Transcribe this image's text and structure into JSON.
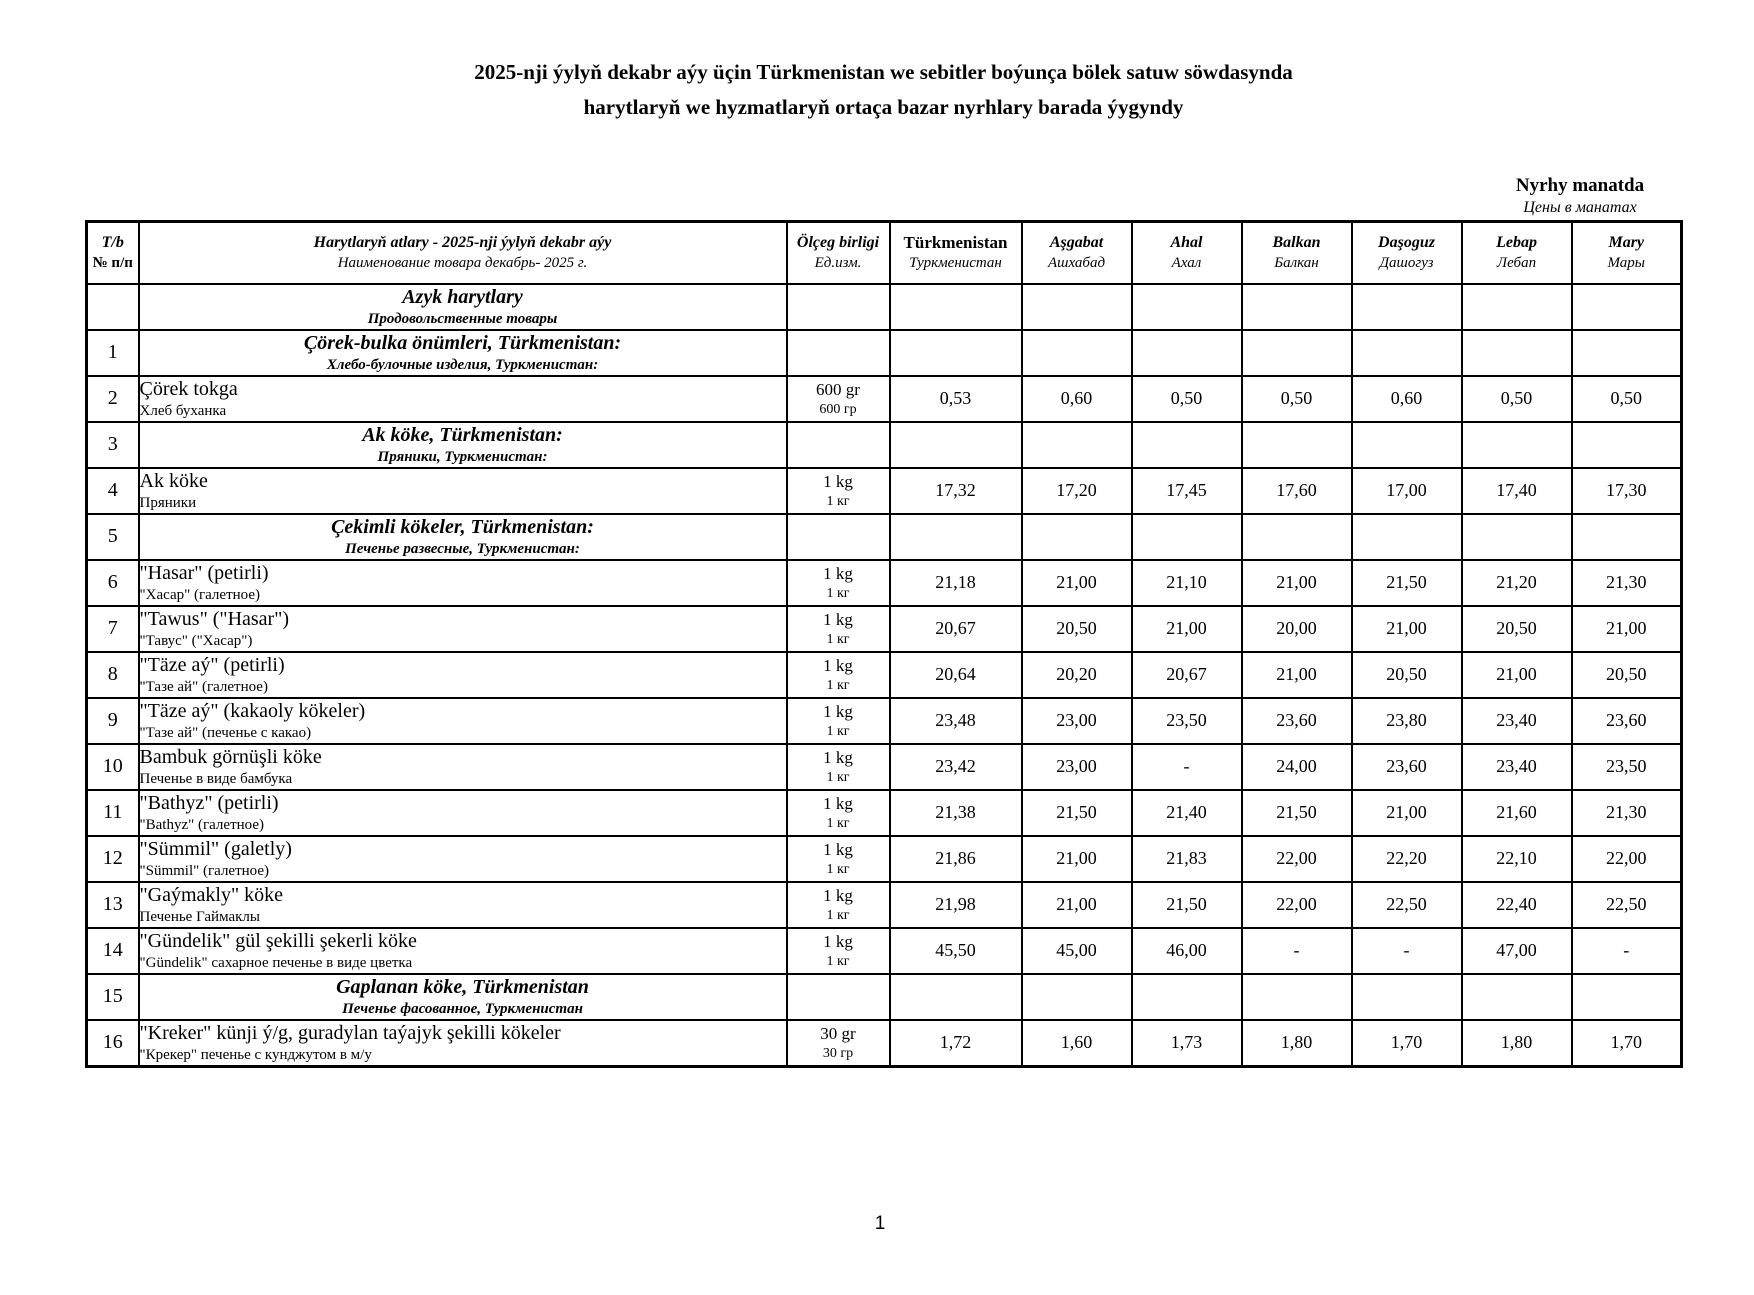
{
  "page": {
    "title_line1": "2025-nji ýylyň dekabr aýy üçin Türkmenistan we sebitler boýunça bölek satuw söwdasynda",
    "title_line2": "harytlaryň we hyzmatlaryň ortaça bazar nyrhlary barada ýygyndy",
    "currency_note_tm": "Nyrhy manatda",
    "currency_note_ru": "Цены в манатах",
    "page_number": "1"
  },
  "table": {
    "header": {
      "num_tm": "T/b",
      "num_ru": "№ п/п",
      "name_tm": "Harytlaryň atlary - 2025-nji ýylyň dekabr aýy",
      "name_ru": "Наименование товара декабрь-  2025 г.",
      "unit_tm": "Ölçeg birligi",
      "unit_ru": "Ед.изм.",
      "regions": [
        {
          "tm": "Türkmenistan",
          "ru": "Туркменистан"
        },
        {
          "tm": "Aşgabat",
          "ru": "Ашхабад"
        },
        {
          "tm": "Ahal",
          "ru": "Ахал"
        },
        {
          "tm": "Balkan",
          "ru": "Балкан"
        },
        {
          "tm": "Daşoguz",
          "ru": "Дашогуз"
        },
        {
          "tm": "Lebap",
          "ru": "Лебап"
        },
        {
          "tm": "Mary",
          "ru": "Мары"
        }
      ]
    },
    "rows": [
      {
        "type": "section",
        "num": "",
        "name_tm": "Azyk harytlary",
        "name_ru": "Продовольственные товары"
      },
      {
        "type": "section",
        "num": "1",
        "name_tm": "Çörek-bulka önümleri, Türkmenistan:",
        "name_ru": "Хлебо-булочные изделия, Туркменистан:"
      },
      {
        "type": "item",
        "num": "2",
        "name_tm": "Çörek tokga",
        "name_ru": "Хлеб буханка",
        "unit_tm": "600 gr",
        "unit_ru": "600 гр",
        "values": [
          "0,53",
          "0,60",
          "0,50",
          "0,50",
          "0,60",
          "0,50",
          "0,50"
        ]
      },
      {
        "type": "section",
        "num": "3",
        "name_tm": "Ak köke, Türkmenistan:",
        "name_ru": "Пряники, Туркменистан:"
      },
      {
        "type": "item",
        "num": "4",
        "name_tm": "Ak köke",
        "name_ru": "Пряники",
        "unit_tm": "1 kg",
        "unit_ru": "1 кг",
        "values": [
          "17,32",
          "17,20",
          "17,45",
          "17,60",
          "17,00",
          "17,40",
          "17,30"
        ]
      },
      {
        "type": "section",
        "num": "5",
        "name_tm": "Çekimli kökeler, Türkmenistan:",
        "name_ru": "Печенье развесные, Туркменистан:"
      },
      {
        "type": "item",
        "num": "6",
        "name_tm": "\"Hasar\" (petirli)",
        "name_ru": "\"Хасар\" (галетное)",
        "unit_tm": "1 kg",
        "unit_ru": "1 кг",
        "values": [
          "21,18",
          "21,00",
          "21,10",
          "21,00",
          "21,50",
          "21,20",
          "21,30"
        ]
      },
      {
        "type": "item",
        "num": "7",
        "name_tm": "\"Tawus\" (\"Hasar\")",
        "name_ru": "\"Тавус\" (\"Хасар\")",
        "unit_tm": "1 kg",
        "unit_ru": "1 кг",
        "values": [
          "20,67",
          "20,50",
          "21,00",
          "20,00",
          "21,00",
          "20,50",
          "21,00"
        ]
      },
      {
        "type": "item",
        "num": "8",
        "name_tm": "\"Täze aý\" (petirli)",
        "name_ru": "\"Тазе ай\" (галетное)",
        "unit_tm": "1 kg",
        "unit_ru": "1 кг",
        "values": [
          "20,64",
          "20,20",
          "20,67",
          "21,00",
          "20,50",
          "21,00",
          "20,50"
        ]
      },
      {
        "type": "item",
        "num": "9",
        "name_tm": "\"Täze aý\" (kakaoly kökeler)",
        "name_ru": "\"Тазе ай\" (печенье с какао)",
        "unit_tm": "1 kg",
        "unit_ru": "1 кг",
        "values": [
          "23,48",
          "23,00",
          "23,50",
          "23,60",
          "23,80",
          "23,40",
          "23,60"
        ]
      },
      {
        "type": "item",
        "num": "10",
        "name_tm": "Bambuk görnüşli köke",
        "name_ru": "Печенье в виде бамбука",
        "unit_tm": "1 kg",
        "unit_ru": "1 кг",
        "values": [
          "23,42",
          "23,00",
          "-",
          "24,00",
          "23,60",
          "23,40",
          "23,50"
        ]
      },
      {
        "type": "item",
        "num": "11",
        "name_tm": "\"Bathyz\" (petirli)",
        "name_ru": "\"Bathyz\" (галетное)",
        "unit_tm": "1 kg",
        "unit_ru": "1 кг",
        "values": [
          "21,38",
          "21,50",
          "21,40",
          "21,50",
          "21,00",
          "21,60",
          "21,30"
        ]
      },
      {
        "type": "item",
        "num": "12",
        "name_tm": "\"Sümmil\" (galetly)",
        "name_ru": "\"Sümmil\" (галетное)",
        "unit_tm": "1 kg",
        "unit_ru": "1 кг",
        "values": [
          "21,86",
          "21,00",
          "21,83",
          "22,00",
          "22,20",
          "22,10",
          "22,00"
        ]
      },
      {
        "type": "item",
        "num": "13",
        "name_tm": "\"Gaýmakly\" köke",
        "name_ru": "Печенье Гаймаклы",
        "unit_tm": "1 kg",
        "unit_ru": "1 кг",
        "values": [
          "21,98",
          "21,00",
          "21,50",
          "22,00",
          "22,50",
          "22,40",
          "22,50"
        ]
      },
      {
        "type": "item",
        "num": "14",
        "name_tm": "\"Gündelik\" gül şekilli şekerli köke",
        "name_ru": "\"Gündelik\" сахарное печенье в виде цветка",
        "unit_tm": "1 kg",
        "unit_ru": "1 кг",
        "values": [
          "45,50",
          "45,00",
          "46,00",
          "-",
          "-",
          "47,00",
          "-"
        ]
      },
      {
        "type": "section",
        "num": "15",
        "name_tm": "Gaplanan köke, Türkmenistan",
        "name_ru": "Печенье фасованное, Туркменистан"
      },
      {
        "type": "item",
        "num": "16",
        "name_tm": "\"Kreker\" künji ý/g, guradylan taýajyk şekilli kökeler",
        "name_ru": "\"Крекер\" печенье с кунджутом в м/у",
        "unit_tm": "30 gr",
        "unit_ru": "30 гр",
        "values": [
          "1,72",
          "1,60",
          "1,73",
          "1,80",
          "1,70",
          "1,80",
          "1,70"
        ]
      }
    ]
  }
}
